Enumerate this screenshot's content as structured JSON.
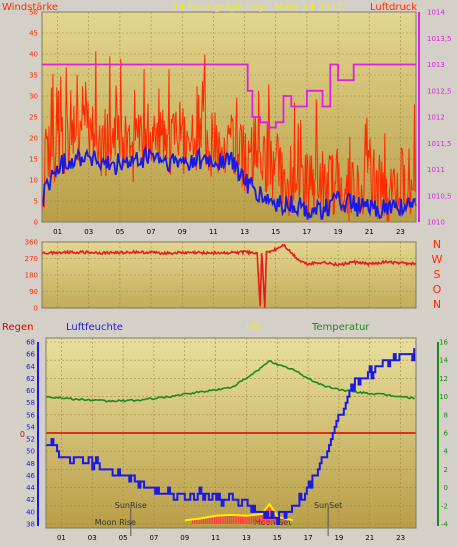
{
  "header": {
    "title": "24 hour graph day : Marz 24 2017",
    "left_label": "Windstärke",
    "right_label": "Luftdruck"
  },
  "colors": {
    "frame_bg": "#d4d0c8",
    "plot_bg_top": "#e2d48a",
    "plot_bg_bottom": "#b9a04a",
    "wind_raw": "#ff2a00",
    "wind_avg": "#1a1ae6",
    "pressure": "#e020e0",
    "direction": "#e81c1c",
    "humidity": "#1a1ae6",
    "temperature": "#1d8a1d",
    "uv": "#ffee00",
    "rain": "#e00000",
    "title_yellow": "#f3f000",
    "label_red": "#ff2a00",
    "label_blue": "#1a1ae6",
    "label_green": "#1d8a1d",
    "label_magenta": "#e020e0"
  },
  "x_ticks": [
    "01",
    "03",
    "05",
    "07",
    "09",
    "11",
    "13",
    "15",
    "17",
    "19",
    "21",
    "23"
  ],
  "direction_labels": [
    "N",
    "W",
    "S",
    "O",
    "N"
  ],
  "bottom_labels": {
    "rain": "Regen",
    "humidity": "Luftfeuchte",
    "uv": "UV",
    "temperature": "Temperatur"
  },
  "astro": {
    "sunrise_label": "SunRise",
    "sunset_label": "SunSet",
    "moonrise_label": "Moon Rise",
    "moonset_label": "Moon Set",
    "sunrise_hour": 5.5,
    "sunset_hour": 18.3,
    "moonrise_hour": 4.5,
    "moonset_hour": 14.7
  },
  "chart_data": [
    {
      "type": "line",
      "title": "24 hour graph day : Marz 24 2017",
      "x_range": [
        0,
        24
      ],
      "grid": true,
      "axes": {
        "left": {
          "label": "Windstärke",
          "range": [
            0,
            50
          ],
          "ticks": [
            "0",
            "5",
            "10",
            "15",
            "20",
            "25",
            "30",
            "35",
            "40",
            "45",
            "50"
          ]
        },
        "right": {
          "label": "Luftdruck",
          "range": [
            1010,
            1014
          ],
          "ticks": [
            "1010",
            "1010,5",
            "1011",
            "1011,5",
            "1012",
            "1012,5",
            "1013",
            "1013,5",
            "1014"
          ]
        }
      },
      "series": [
        {
          "name": "Windstärke",
          "axis": "left",
          "points": [
            [
              0,
              10
            ],
            [
              1,
              18
            ],
            [
              2,
              21
            ],
            [
              3,
              22
            ],
            [
              4,
              18
            ],
            [
              5,
              20
            ],
            [
              6,
              17
            ],
            [
              7,
              22
            ],
            [
              8,
              18
            ],
            [
              9,
              19
            ],
            [
              10,
              20
            ],
            [
              11,
              18
            ],
            [
              12,
              19
            ],
            [
              13,
              15
            ],
            [
              14,
              13
            ],
            [
              15,
              12
            ],
            [
              16,
              9
            ],
            [
              17,
              9
            ],
            [
              18,
              9
            ],
            [
              19,
              8
            ],
            [
              20,
              8
            ],
            [
              21,
              8
            ],
            [
              22,
              6
            ],
            [
              23,
              8
            ],
            [
              24,
              8
            ]
          ]
        },
        {
          "name": "Windstärke Mittel",
          "axis": "left",
          "points": [
            [
              0,
              6
            ],
            [
              1,
              13
            ],
            [
              2,
              15
            ],
            [
              3,
              16
            ],
            [
              4,
              13
            ],
            [
              5,
              14
            ],
            [
              6,
              14
            ],
            [
              7,
              16
            ],
            [
              8,
              14
            ],
            [
              9,
              14
            ],
            [
              10,
              15
            ],
            [
              11,
              14
            ],
            [
              12,
              15
            ],
            [
              13,
              10
            ],
            [
              14,
              6
            ],
            [
              15,
              4
            ],
            [
              16,
              4
            ],
            [
              17,
              3
            ],
            [
              18,
              3
            ],
            [
              19,
              5
            ],
            [
              20,
              4
            ],
            [
              21,
              3
            ],
            [
              22,
              3
            ],
            [
              23,
              4
            ],
            [
              24,
              3
            ]
          ]
        },
        {
          "name": "Luftdruck",
          "axis": "right",
          "points": [
            [
              0,
              1013
            ],
            [
              13,
              1013
            ],
            [
              13.2,
              1012.5
            ],
            [
              13.5,
              1012
            ],
            [
              14,
              1011.9
            ],
            [
              14.5,
              1011.8
            ],
            [
              15,
              1011.9
            ],
            [
              15.5,
              1012.4
            ],
            [
              16,
              1012.2
            ],
            [
              17,
              1012.5
            ],
            [
              18,
              1012.2
            ],
            [
              18.5,
              1013
            ],
            [
              19,
              1012.7
            ],
            [
              20,
              1013
            ],
            [
              24,
              1013
            ]
          ]
        }
      ]
    },
    {
      "type": "line",
      "x_range": [
        0,
        24
      ],
      "grid": true,
      "axes": {
        "left": {
          "range": [
            0,
            360
          ],
          "ticks": [
            "0",
            "90",
            "180",
            "270",
            "360"
          ]
        }
      },
      "series": [
        {
          "name": "Windrichtung",
          "axis": "left",
          "points": [
            [
              0,
              300
            ],
            [
              2,
              305
            ],
            [
              4,
              300
            ],
            [
              6,
              305
            ],
            [
              8,
              300
            ],
            [
              10,
              302
            ],
            [
              12,
              300
            ],
            [
              13,
              305
            ],
            [
              13.8,
              300
            ],
            [
              14,
              10
            ],
            [
              14.1,
              300
            ],
            [
              14.3,
              0
            ],
            [
              14.4,
              300
            ],
            [
              15,
              320
            ],
            [
              15.5,
              345
            ],
            [
              16,
              300
            ],
            [
              16.5,
              260
            ],
            [
              17,
              240
            ],
            [
              18,
              250
            ],
            [
              19,
              235
            ],
            [
              20,
              250
            ],
            [
              21,
              240
            ],
            [
              22,
              250
            ],
            [
              23,
              245
            ],
            [
              24,
              240
            ]
          ]
        }
      ]
    },
    {
      "type": "line",
      "x_range": [
        0,
        24
      ],
      "grid": true,
      "axes": {
        "left_outer": {
          "label": "Regen",
          "value_ticks": [
            "0"
          ]
        },
        "left": {
          "label": "Luftfeuchte",
          "range": [
            38,
            68
          ],
          "ticks": [
            "38",
            "40",
            "42",
            "44",
            "46",
            "48",
            "50",
            "52",
            "54",
            "56",
            "58",
            "60",
            "62",
            "64",
            "66",
            "68"
          ]
        },
        "right": {
          "label": "Temperatur",
          "range": [
            -4,
            16
          ],
          "ticks": [
            "-4",
            "-2",
            "0",
            "2",
            "4",
            "6",
            "8",
            "10",
            "12",
            "14",
            "16"
          ]
        }
      },
      "series": [
        {
          "name": "Luftfeuchte",
          "axis": "left",
          "points": [
            [
              0,
              52
            ],
            [
              1,
              49
            ],
            [
              2,
              48.5
            ],
            [
              3,
              48
            ],
            [
              4,
              47
            ],
            [
              5,
              46
            ],
            [
              6,
              45
            ],
            [
              7,
              44
            ],
            [
              8,
              43
            ],
            [
              9,
              42
            ],
            [
              10,
              43
            ],
            [
              11,
              42
            ],
            [
              12,
              42
            ],
            [
              13,
              41
            ],
            [
              14,
              40
            ],
            [
              15,
              39
            ],
            [
              16,
              40
            ],
            [
              17,
              44
            ],
            [
              18,
              49
            ],
            [
              19,
              56
            ],
            [
              20,
              61
            ],
            [
              21,
              63
            ],
            [
              22,
              65
            ],
            [
              23,
              66
            ],
            [
              24,
              66
            ]
          ]
        },
        {
          "name": "Temperatur",
          "axis": "right",
          "points": [
            [
              0,
              10
            ],
            [
              2,
              9.7
            ],
            [
              4,
              9.5
            ],
            [
              6,
              9.6
            ],
            [
              8,
              10
            ],
            [
              10,
              10.5
            ],
            [
              12,
              11
            ],
            [
              13,
              12
            ],
            [
              14,
              13.2
            ],
            [
              14.5,
              14
            ],
            [
              15,
              13.5
            ],
            [
              16,
              13
            ],
            [
              17,
              12
            ],
            [
              18,
              11.2
            ],
            [
              19,
              10.8
            ],
            [
              20,
              10.5
            ],
            [
              22,
              10.2
            ],
            [
              24,
              9.8
            ]
          ]
        },
        {
          "name": "UV",
          "axis": "right",
          "points": [
            [
              9,
              -3.6
            ],
            [
              10,
              -3.4
            ],
            [
              11,
              -3.1
            ],
            [
              12,
              -3.0
            ],
            [
              13,
              -3.1
            ],
            [
              14,
              -2.9
            ],
            [
              14.5,
              -1.8
            ],
            [
              15,
              -3.2
            ],
            [
              16,
              -3.6
            ]
          ]
        },
        {
          "name": "Regen",
          "axis": "right",
          "points": [
            [
              0,
              6
            ],
            [
              24,
              6
            ]
          ]
        }
      ]
    }
  ]
}
